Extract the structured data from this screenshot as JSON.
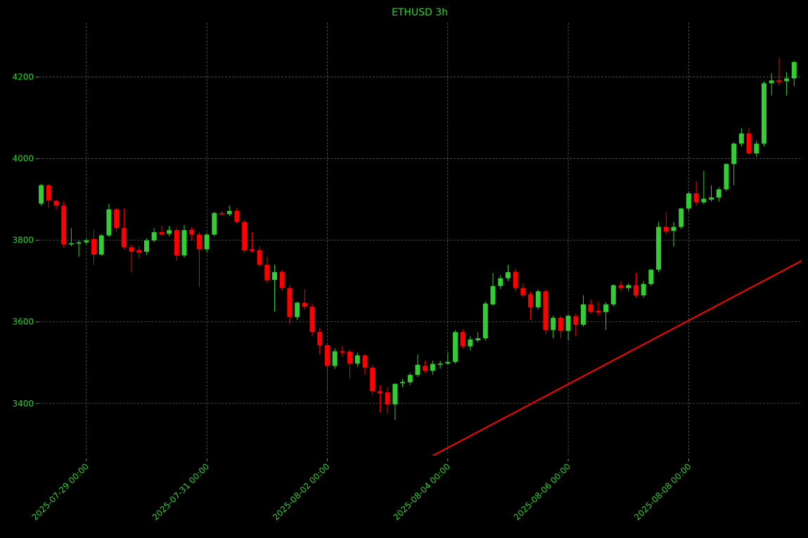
{
  "chart_data": {
    "type": "candlestick",
    "title": "ETHUSD 3h",
    "x": [
      "2025-07-28 06:00",
      "2025-07-28 09:00",
      "2025-07-28 12:00",
      "2025-07-28 15:00",
      "2025-07-28 18:00",
      "2025-07-28 21:00",
      "2025-07-29 00:00",
      "2025-07-29 03:00",
      "2025-07-29 06:00",
      "2025-07-29 09:00",
      "2025-07-29 12:00",
      "2025-07-29 15:00",
      "2025-07-29 18:00",
      "2025-07-29 21:00",
      "2025-07-30 00:00",
      "2025-07-30 03:00",
      "2025-07-30 06:00",
      "2025-07-30 09:00",
      "2025-07-30 12:00",
      "2025-07-30 15:00",
      "2025-07-30 18:00",
      "2025-07-30 21:00",
      "2025-07-31 00:00",
      "2025-07-31 03:00",
      "2025-07-31 06:00",
      "2025-07-31 09:00",
      "2025-07-31 12:00",
      "2025-07-31 15:00",
      "2025-07-31 18:00",
      "2025-07-31 21:00",
      "2025-08-01 00:00",
      "2025-08-01 03:00",
      "2025-08-01 06:00",
      "2025-08-01 09:00",
      "2025-08-01 12:00",
      "2025-08-01 15:00",
      "2025-08-01 18:00",
      "2025-08-01 21:00",
      "2025-08-02 00:00",
      "2025-08-02 03:00",
      "2025-08-02 06:00",
      "2025-08-02 09:00",
      "2025-08-02 12:00",
      "2025-08-02 15:00",
      "2025-08-02 18:00",
      "2025-08-02 21:00",
      "2025-08-03 00:00",
      "2025-08-03 03:00",
      "2025-08-03 06:00",
      "2025-08-03 09:00",
      "2025-08-03 12:00",
      "2025-08-03 15:00",
      "2025-08-03 18:00",
      "2025-08-03 21:00",
      "2025-08-04 00:00",
      "2025-08-04 03:00",
      "2025-08-04 06:00",
      "2025-08-04 09:00",
      "2025-08-04 12:00",
      "2025-08-04 15:00",
      "2025-08-04 18:00",
      "2025-08-04 21:00",
      "2025-08-05 00:00",
      "2025-08-05 03:00",
      "2025-08-05 06:00",
      "2025-08-05 09:00",
      "2025-08-05 12:00",
      "2025-08-05 15:00",
      "2025-08-05 18:00",
      "2025-08-05 21:00",
      "2025-08-06 00:00",
      "2025-08-06 03:00",
      "2025-08-06 06:00",
      "2025-08-06 09:00",
      "2025-08-06 12:00",
      "2025-08-06 15:00",
      "2025-08-06 18:00",
      "2025-08-06 21:00",
      "2025-08-07 00:00",
      "2025-08-07 03:00",
      "2025-08-07 06:00",
      "2025-08-07 09:00",
      "2025-08-07 12:00",
      "2025-08-07 15:00",
      "2025-08-07 18:00",
      "2025-08-07 21:00",
      "2025-08-08 00:00",
      "2025-08-08 03:00",
      "2025-08-08 06:00",
      "2025-08-08 09:00",
      "2025-08-08 12:00",
      "2025-08-08 15:00",
      "2025-08-08 18:00",
      "2025-08-08 21:00",
      "2025-08-09 00:00",
      "2025-08-09 03:00",
      "2025-08-09 06:00",
      "2025-08-09 09:00",
      "2025-08-09 12:00",
      "2025-08-09 15:00",
      "2025-08-09 18:00"
    ],
    "open": [
      3890,
      3935,
      3897,
      3885,
      3790,
      3792,
      3795,
      3803,
      3765,
      3812,
      3876,
      3830,
      3783,
      3776,
      3772,
      3800,
      3820,
      3816,
      3825,
      3763,
      3826,
      3814,
      3778,
      3814,
      3867,
      3864,
      3872,
      3845,
      3778,
      3776,
      3740,
      3703,
      3723,
      3683,
      3612,
      3647,
      3637,
      3575,
      3543,
      3492,
      3528,
      3527,
      3498,
      3518,
      3488,
      3430,
      3427,
      3398,
      3450,
      3452,
      3470,
      3492,
      3480,
      3495,
      3498,
      3502,
      3575,
      3540,
      3555,
      3560,
      3643,
      3688,
      3707,
      3723,
      3683,
      3668,
      3636,
      3675,
      3580,
      3610,
      3578,
      3614,
      3593,
      3643,
      3627,
      3624,
      3643,
      3690,
      3683,
      3690,
      3665,
      3693,
      3728,
      3833,
      3823,
      3833,
      3878,
      3915,
      3893,
      3900,
      3905,
      3925,
      3987,
      4037,
      4062,
      4013,
      4037,
      4185,
      4192,
      4190,
      4197
    ],
    "high": [
      3938,
      3938,
      3900,
      3895,
      3830,
      3800,
      3805,
      3825,
      3815,
      3890,
      3880,
      3878,
      3790,
      3785,
      3805,
      3830,
      3835,
      3835,
      3830,
      3838,
      3832,
      3820,
      3818,
      3870,
      3872,
      3885,
      3880,
      3850,
      3820,
      3785,
      3760,
      3740,
      3728,
      3690,
      3650,
      3680,
      3645,
      3585,
      3550,
      3535,
      3540,
      3532,
      3525,
      3522,
      3495,
      3445,
      3440,
      3450,
      3460,
      3475,
      3520,
      3505,
      3505,
      3505,
      3525,
      3580,
      3582,
      3565,
      3575,
      3650,
      3720,
      3715,
      3740,
      3730,
      3695,
      3675,
      3680,
      3680,
      3615,
      3615,
      3620,
      3620,
      3665,
      3655,
      3650,
      3648,
      3692,
      3700,
      3695,
      3720,
      3700,
      3730,
      3845,
      3870,
      3845,
      3880,
      3920,
      3945,
      3970,
      3935,
      3930,
      3990,
      4040,
      4075,
      4075,
      4045,
      4190,
      4210,
      4248,
      4212,
      4240
    ],
    "low": [
      3885,
      3880,
      3875,
      3782,
      3785,
      3760,
      3790,
      3740,
      3762,
      3808,
      3822,
      3778,
      3722,
      3755,
      3765,
      3795,
      3810,
      3810,
      3750,
      3758,
      3800,
      3685,
      3770,
      3810,
      3860,
      3860,
      3840,
      3770,
      3770,
      3735,
      3695,
      3625,
      3675,
      3595,
      3605,
      3630,
      3565,
      3520,
      3430,
      3485,
      3515,
      3460,
      3490,
      3470,
      3420,
      3378,
      3375,
      3360,
      3440,
      3445,
      3465,
      3475,
      3470,
      3485,
      3495,
      3498,
      3535,
      3530,
      3550,
      3555,
      3640,
      3680,
      3700,
      3675,
      3660,
      3605,
      3630,
      3570,
      3560,
      3560,
      3555,
      3565,
      3588,
      3620,
      3615,
      3580,
      3638,
      3675,
      3675,
      3660,
      3660,
      3688,
      3722,
      3815,
      3785,
      3828,
      3870,
      3885,
      3888,
      3895,
      3895,
      3920,
      3935,
      4030,
      4010,
      4005,
      4030,
      4155,
      4180,
      4155,
      4178
    ],
    "close": [
      3935,
      3898,
      3885,
      3790,
      3793,
      3795,
      3800,
      3765,
      3812,
      3876,
      3830,
      3783,
      3772,
      3770,
      3800,
      3820,
      3815,
      3825,
      3763,
      3825,
      3814,
      3778,
      3814,
      3867,
      3864,
      3872,
      3845,
      3775,
      3774,
      3740,
      3702,
      3722,
      3683,
      3612,
      3647,
      3637,
      3575,
      3543,
      3492,
      3528,
      3525,
      3498,
      3518,
      3488,
      3430,
      3425,
      3398,
      3448,
      3453,
      3470,
      3495,
      3480,
      3497,
      3498,
      3502,
      3575,
      3540,
      3557,
      3560,
      3645,
      3688,
      3707,
      3722,
      3683,
      3665,
      3636,
      3675,
      3580,
      3610,
      3578,
      3615,
      3593,
      3643,
      3625,
      3623,
      3643,
      3690,
      3683,
      3690,
      3665,
      3693,
      3728,
      3833,
      3822,
      3833,
      3878,
      3915,
      3893,
      3902,
      3905,
      3925,
      3987,
      4037,
      4062,
      4013,
      4037,
      4185,
      4192,
      4188,
      4197,
      4237
    ],
    "up_color": "#32cd32",
    "down_color": "#ff0000",
    "lines": [
      {
        "color": "#ff0000",
        "x": [
          "2025-08-03 18:00",
          "2025-08-09 21:00"
        ],
        "values": [
          3272,
          3750
        ]
      }
    ],
    "xlim": [
      "2025-07-28 05:00",
      "2025-08-09 21:00"
    ],
    "xticks": [
      "2025-07-29 00:00",
      "2025-07-31 00:00",
      "2025-08-02 00:00",
      "2025-08-04 00:00",
      "2025-08-06 00:00",
      "2025-08-08 00:00"
    ],
    "ylim": [
      3272,
      4334
    ],
    "yticks": [
      3400,
      3600,
      3800,
      4000,
      4200
    ],
    "grid": true
  }
}
